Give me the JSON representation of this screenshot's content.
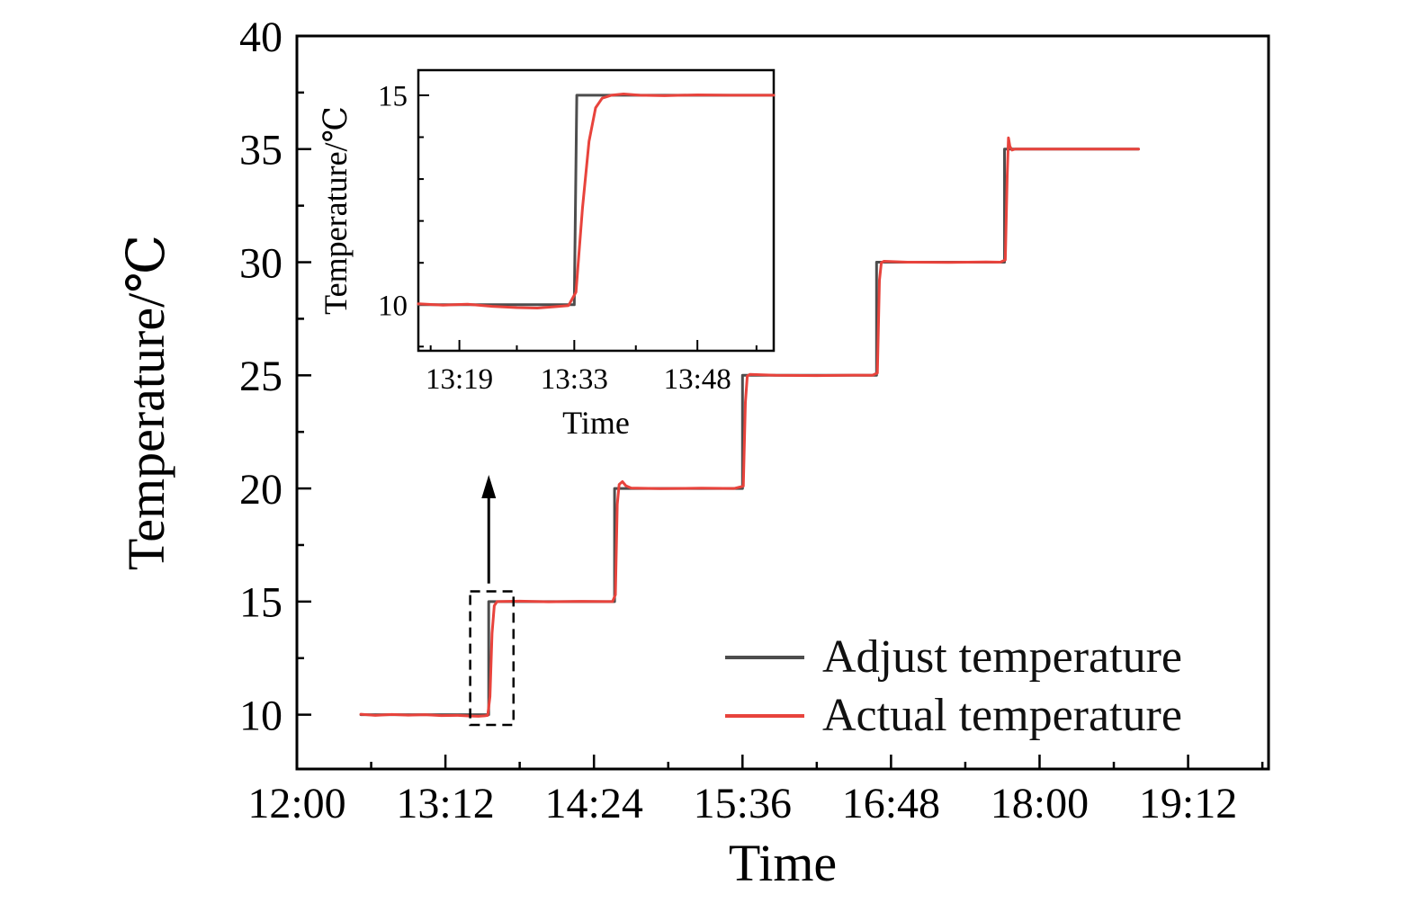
{
  "figure": {
    "background": "#ffffff",
    "legend": {
      "entries": [
        {
          "label": "Adjust temperature",
          "color": "#4d4d4d"
        },
        {
          "label": "Actual temperature",
          "color": "#e8433c"
        }
      ]
    }
  },
  "chart_data": [
    {
      "id": "main",
      "type": "line",
      "title": "",
      "xlabel": "Time",
      "ylabel": "Temperature/℃",
      "x_unit": "minutes after 12:00",
      "xlim": [
        0,
        471
      ],
      "ylim": [
        7.6,
        40
      ],
      "x_major_ticks": [
        {
          "t": 0,
          "label": "12:00"
        },
        {
          "t": 72,
          "label": "13:12"
        },
        {
          "t": 144,
          "label": "14:24"
        },
        {
          "t": 216,
          "label": "15:36"
        },
        {
          "t": 288,
          "label": "16:48"
        },
        {
          "t": 360,
          "label": "18:00"
        },
        {
          "t": 432,
          "label": "19:12"
        }
      ],
      "x_minor_ticks": [
        36,
        108,
        180,
        252,
        324,
        396,
        468
      ],
      "y_major_ticks": [
        10,
        15,
        20,
        25,
        30,
        35,
        40
      ],
      "y_minor_ticks": [
        12.5,
        17.5,
        22.5,
        27.5,
        32.5,
        37.5
      ],
      "series": [
        {
          "name": "Adjust temperature",
          "color": "#4d4d4d",
          "points": [
            [
              31,
              10
            ],
            [
              93,
              10
            ],
            [
              93,
              15
            ],
            [
              154,
              15
            ],
            [
              154,
              20
            ],
            [
              216,
              20
            ],
            [
              216,
              25
            ],
            [
              281,
              25
            ],
            [
              281,
              30
            ],
            [
              343,
              30
            ],
            [
              343,
              35
            ],
            [
              408,
              35
            ]
          ]
        },
        {
          "name": "Actual temperature",
          "color": "#e8433c",
          "points": [
            [
              31,
              10.02
            ],
            [
              38,
              9.97
            ],
            [
              46,
              10.01
            ],
            [
              54,
              9.98
            ],
            [
              62,
              10
            ],
            [
              70,
              9.96
            ],
            [
              78,
              9.97
            ],
            [
              84,
              9.94
            ],
            [
              88,
              9.93
            ],
            [
              91,
              9.95
            ],
            [
              92.5,
              9.97
            ],
            [
              93.6,
              10.8
            ],
            [
              94.6,
              13.6
            ],
            [
              95.7,
              14.82
            ],
            [
              97,
              15
            ],
            [
              108,
              15.02
            ],
            [
              122,
              14.99
            ],
            [
              138,
              15.01
            ],
            [
              150,
              15
            ],
            [
              153,
              15
            ],
            [
              154.4,
              15.3
            ],
            [
              155.3,
              19.3
            ],
            [
              156.2,
              20.18
            ],
            [
              157.8,
              20.3
            ],
            [
              159.5,
              20.12
            ],
            [
              162,
              20.02
            ],
            [
              176,
              19.99
            ],
            [
              196,
              20.01
            ],
            [
              212,
              20
            ],
            [
              216.4,
              20.1
            ],
            [
              217.4,
              23.8
            ],
            [
              218.3,
              24.97
            ],
            [
              219.6,
              25.04
            ],
            [
              232,
              25
            ],
            [
              252,
              24.99
            ],
            [
              270,
              25.01
            ],
            [
              279,
              25
            ],
            [
              281.4,
              25.1
            ],
            [
              282.4,
              29.2
            ],
            [
              283.3,
              29.98
            ],
            [
              284.6,
              30.04
            ],
            [
              296,
              30
            ],
            [
              316,
              29.99
            ],
            [
              334,
              30.01
            ],
            [
              341,
              30
            ],
            [
              343.4,
              30.1
            ],
            [
              344.3,
              33.8
            ],
            [
              344.9,
              35.5
            ],
            [
              345.6,
              35.12
            ],
            [
              346.6,
              34.96
            ],
            [
              348,
              35
            ],
            [
              368,
              35
            ],
            [
              390,
              35
            ],
            [
              408,
              35
            ]
          ]
        }
      ],
      "annotations": {
        "dashed_box": {
          "x": [
            84,
            105
          ],
          "y": [
            9.55,
            15.45
          ]
        },
        "arrow": {
          "x": 93,
          "y_from": 15.8,
          "y_to": 20.6
        }
      }
    },
    {
      "id": "inset",
      "type": "line",
      "title": "",
      "xlabel": "Time",
      "ylabel": "Temperature/℃",
      "x_unit": "minutes after 12:00",
      "xlim": [
        74,
        117.3
      ],
      "ylim": [
        8.9,
        15.6
      ],
      "x_major_ticks": [
        {
          "t": 79,
          "label": "13:19"
        },
        {
          "t": 93,
          "label": "13:33"
        },
        {
          "t": 108,
          "label": "13:48"
        }
      ],
      "x_minor_ticks": [
        75.5,
        86,
        100.5,
        115.2
      ],
      "y_major_ticks": [
        10,
        15
      ],
      "y_minor_ticks": [
        9,
        11,
        12,
        13,
        14
      ],
      "series": [
        {
          "name": "Adjust temperature",
          "color": "#4d4d4d",
          "points": [
            [
              74,
              10
            ],
            [
              93,
              10
            ],
            [
              93.3,
              15
            ],
            [
              117.3,
              15
            ]
          ]
        },
        {
          "name": "Actual temperature",
          "color": "#e8433c",
          "points": [
            [
              74,
              10.02
            ],
            [
              77,
              9.99
            ],
            [
              80,
              10.01
            ],
            [
              83,
              9.96
            ],
            [
              86,
              9.93
            ],
            [
              88.5,
              9.92
            ],
            [
              90.5,
              9.95
            ],
            [
              92.3,
              9.98
            ],
            [
              93.2,
              10.3
            ],
            [
              94,
              12.3
            ],
            [
              94.8,
              13.9
            ],
            [
              95.6,
              14.7
            ],
            [
              96.4,
              14.93
            ],
            [
              97.5,
              15
            ],
            [
              99,
              15.03
            ],
            [
              101,
              15
            ],
            [
              104,
              14.99
            ],
            [
              108,
              15.01
            ],
            [
              112,
              15
            ],
            [
              117.3,
              15
            ]
          ]
        }
      ]
    }
  ]
}
